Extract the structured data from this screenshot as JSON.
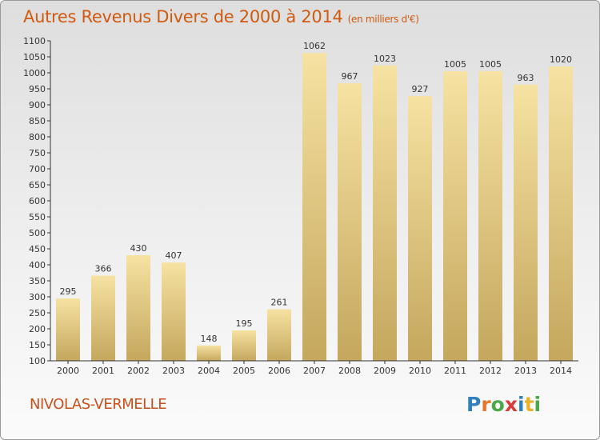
{
  "chart_data": {
    "type": "bar",
    "title": "Autres Revenus Divers de 2000 à 2014",
    "unit": "(en milliers d'€)",
    "categories": [
      "2000",
      "2001",
      "2002",
      "2003",
      "2004",
      "2005",
      "2006",
      "2007",
      "2008",
      "2009",
      "2010",
      "2011",
      "2012",
      "2013",
      "2014"
    ],
    "values": [
      295,
      366,
      430,
      407,
      148,
      195,
      261,
      1062,
      967,
      1023,
      927,
      1005,
      1005,
      963,
      1020
    ],
    "ylim": [
      100,
      1100
    ],
    "yticks": [
      100,
      150,
      200,
      250,
      300,
      350,
      400,
      450,
      500,
      550,
      600,
      650,
      700,
      750,
      800,
      850,
      900,
      950,
      1000,
      1050,
      1100
    ],
    "grid": false,
    "xlabel": "",
    "ylabel": ""
  },
  "location": "NIVOLAS-VERMELLE",
  "logo": {
    "text": "Proxiti",
    "letters": [
      "P",
      "r",
      "o",
      "x",
      "i",
      "t",
      "i"
    ],
    "colors": [
      "#2f7fc1",
      "#e8752a",
      "#4aa84a",
      "#d93b3b",
      "#2f7fc1",
      "#e8b22a",
      "#4aa84a"
    ]
  },
  "colors": {
    "title": "#d05a10",
    "bar_light": "#f5df9c",
    "bar_dark": "#c8aa60",
    "axis": "#333333"
  }
}
